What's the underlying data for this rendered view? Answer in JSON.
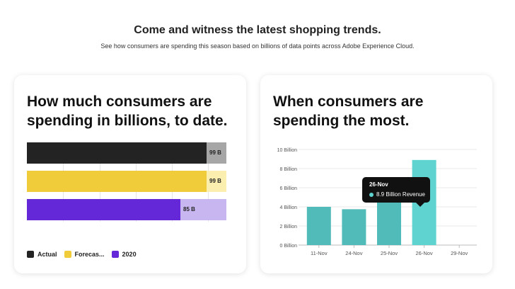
{
  "hero": {
    "title": "Come and witness the latest shopping trends.",
    "subtitle": "See how consumers are spending this season based on billions of data points across Adobe Experience Cloud."
  },
  "left_card": {
    "title": "How much consumers are spending in billions, to date."
  },
  "right_card": {
    "title": "When consumers are spending the most."
  },
  "colors": {
    "actual": "#232323",
    "actual_rest": "#a6a6a6",
    "forecast": "#f0cc3a",
    "forecast_rest": "#faefaf",
    "y2020": "#6428d8",
    "y2020_rest": "#c8b6f0",
    "revenue": "#50bbb8",
    "revenue_highlight": "#5ed3cf"
  },
  "tooltip": {
    "date": "26-Nov",
    "label": "8.9 Billion Revenue"
  },
  "chart_data": [
    {
      "type": "bar",
      "orientation": "horizontal",
      "categories": [
        "Actual",
        "Forecas...",
        "2020"
      ],
      "values": [
        99,
        99,
        85
      ],
      "value_labels": [
        "99 B",
        "99 B",
        "85 B"
      ],
      "fill_fraction": [
        0.9,
        0.9,
        0.77
      ],
      "legend": [
        "Actual",
        "Forecas...",
        "2020"
      ],
      "legend_position": "bottom-left",
      "grid": true
    },
    {
      "type": "bar",
      "categories": [
        "11-Nov",
        "24-Nov",
        "25-Nov",
        "26-Nov",
        "29-Nov"
      ],
      "values": [
        4.0,
        3.75,
        5.1,
        8.9,
        null
      ],
      "ylim": [
        0,
        10
      ],
      "yticks": [
        "0 Billion",
        "2 Billion",
        "4 Billion",
        "6 Billion",
        "8 Billion",
        "10 Billion"
      ],
      "grid": true
    }
  ]
}
